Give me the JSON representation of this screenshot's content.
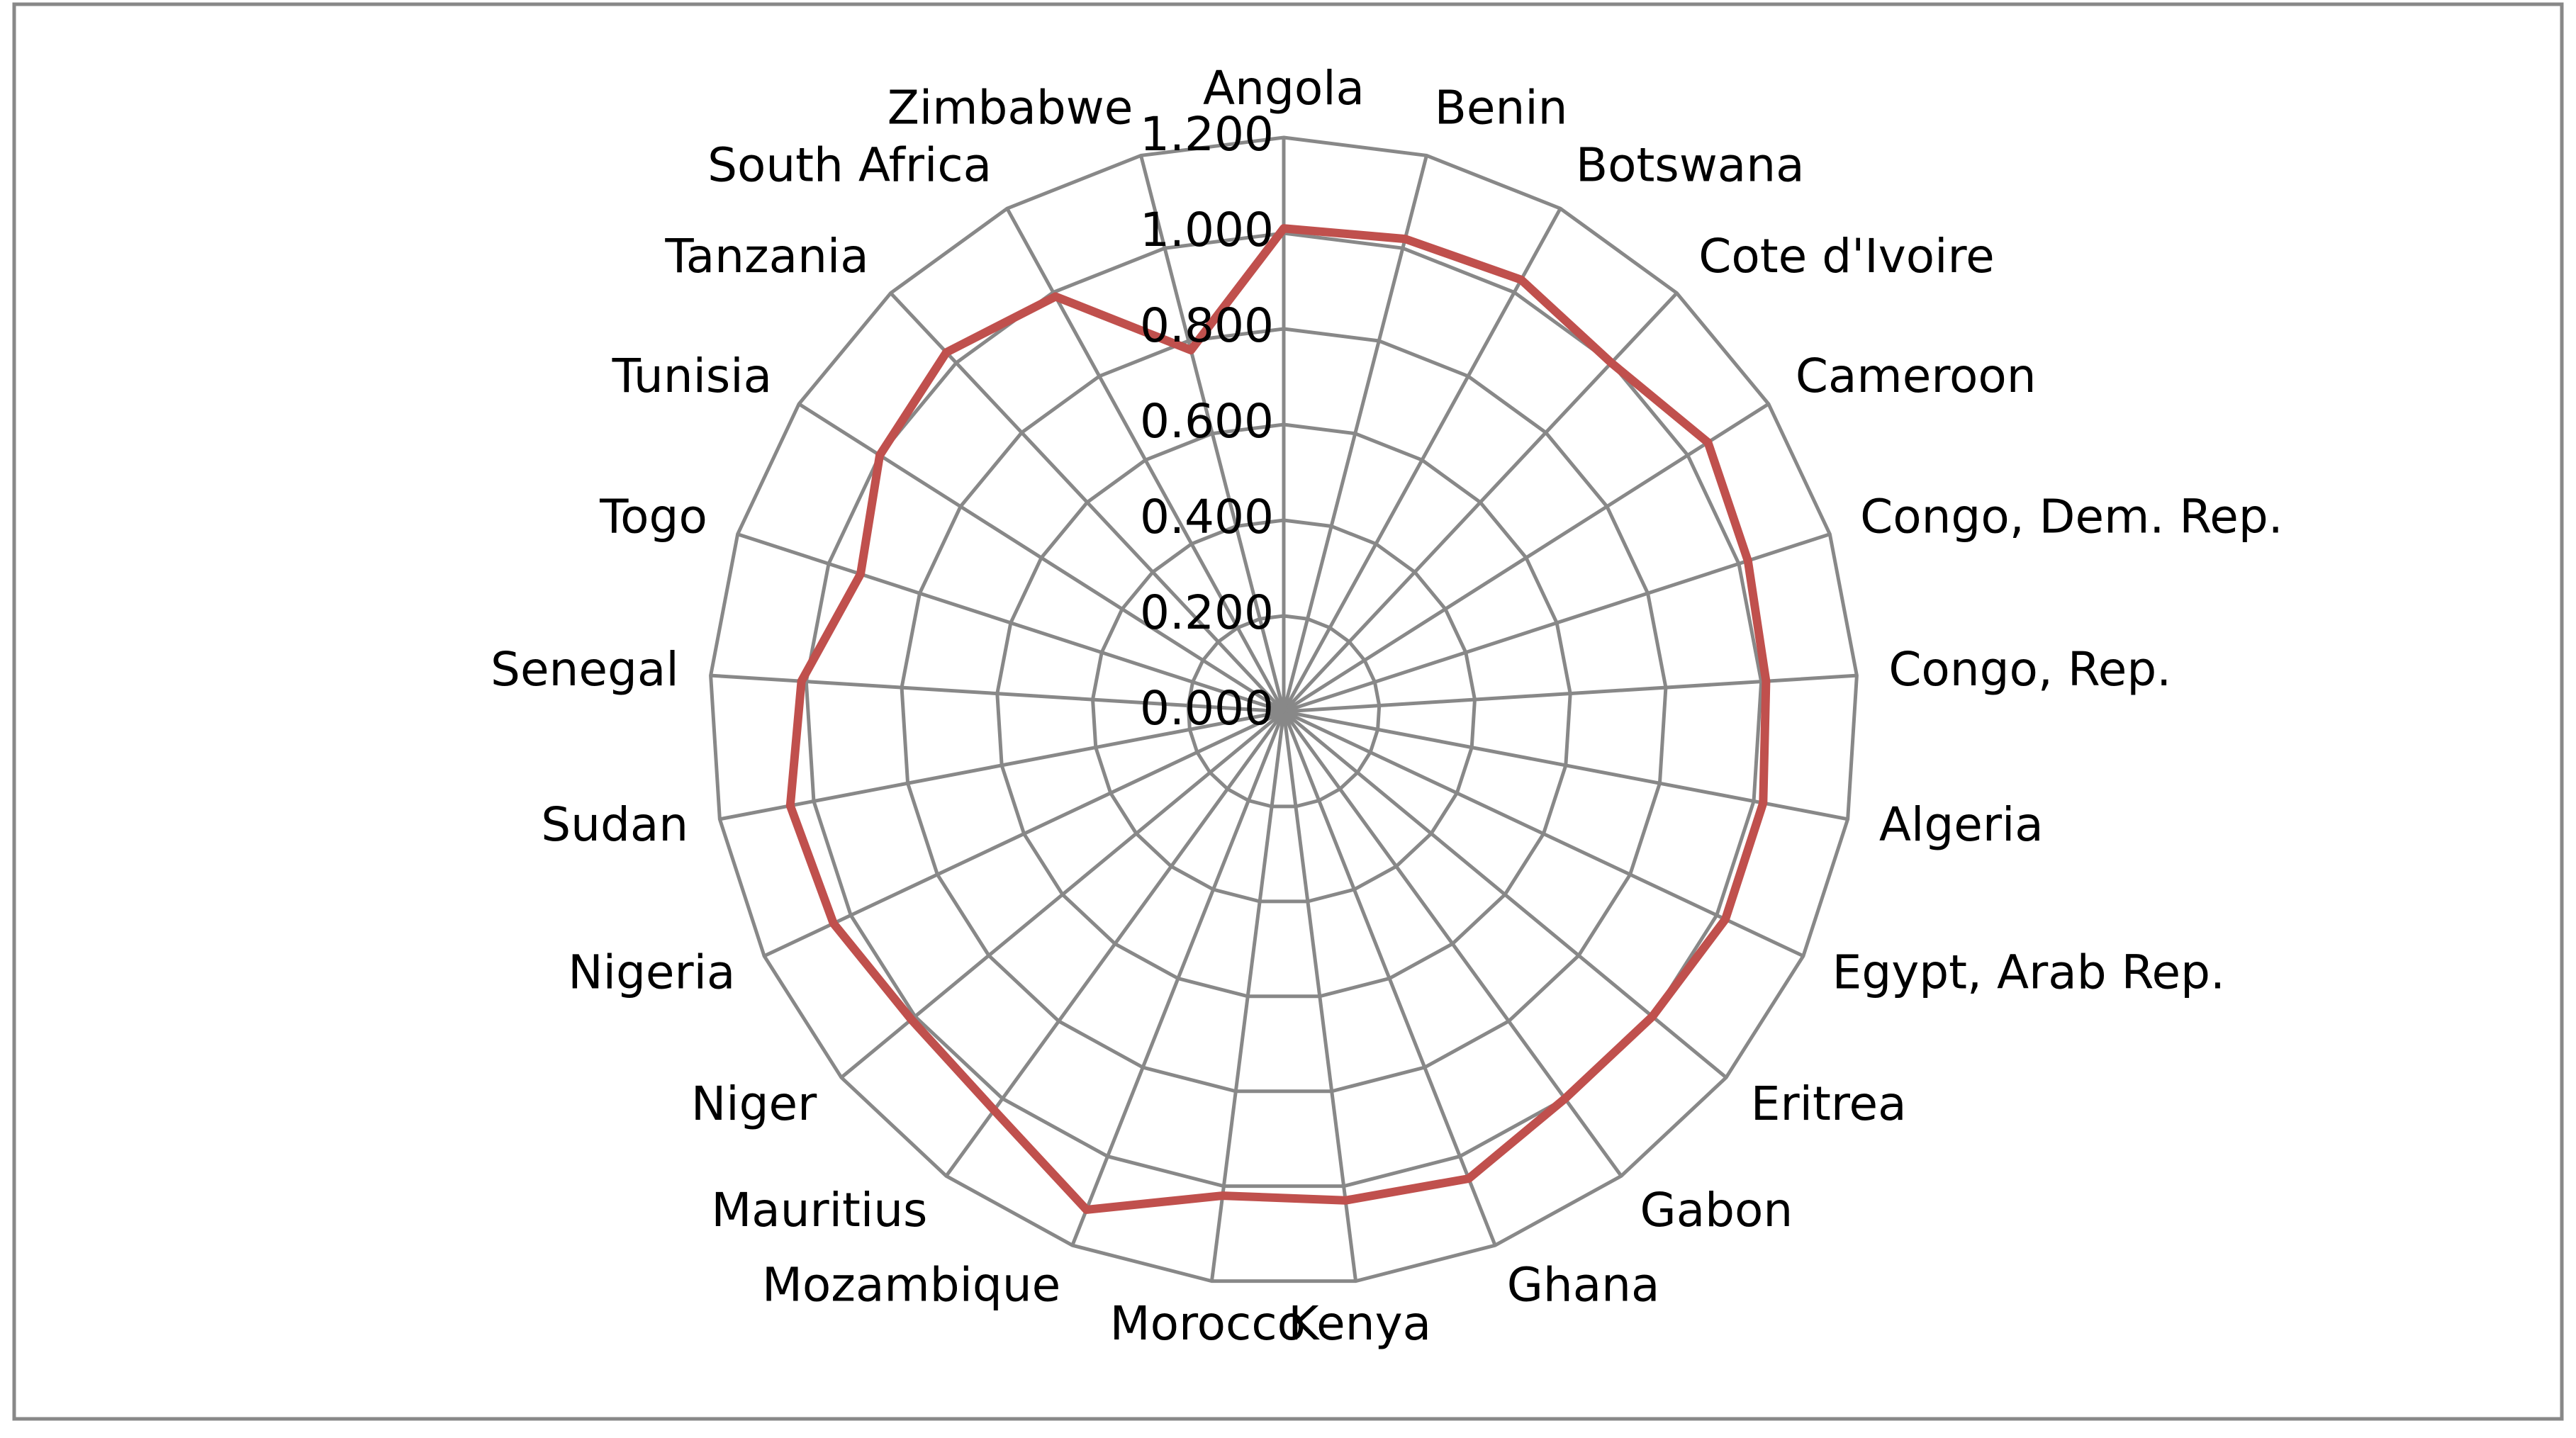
{
  "chart_data": {
    "type": "radar",
    "categories": [
      "Angola",
      "Benin",
      "Botswana",
      "Cote d'Ivoire",
      "Cameroon",
      "Congo, Dem. Rep.",
      "Congo, Rep.",
      "Algeria",
      "Egypt, Arab Rep.",
      "Eritrea",
      "Gabon",
      "Ghana",
      "Kenya",
      "Morocco",
      "Mozambique",
      "Mauritius",
      "Niger",
      "Nigeria",
      "Sudan",
      "Senegal",
      "Togo",
      "Tunisia",
      "Tanzania",
      "South Africa",
      "Zimbabwe"
    ],
    "values": [
      1.01,
      1.02,
      1.03,
      1.0,
      1.05,
      1.02,
      1.01,
      1.02,
      1.02,
      1.0,
      1.0,
      1.05,
      1.03,
      1.02,
      1.12,
      1.03,
      1.01,
      1.04,
      1.05,
      1.01,
      0.93,
      1.0,
      1.03,
      0.99,
      0.78
    ],
    "color": "#c0504d",
    "ylim": [
      0,
      1.2
    ],
    "yticks": [
      {
        "value": 0,
        "label": "0.000"
      },
      {
        "value": 0.2,
        "label": "0.200"
      },
      {
        "value": 0.4,
        "label": "0.400"
      },
      {
        "value": 0.6,
        "label": "0.600"
      },
      {
        "value": 0.8,
        "label": "0.800"
      },
      {
        "value": 1.0,
        "label": "1.000"
      },
      {
        "value": 1.2,
        "label": "1.200"
      }
    ],
    "grid": true
  }
}
